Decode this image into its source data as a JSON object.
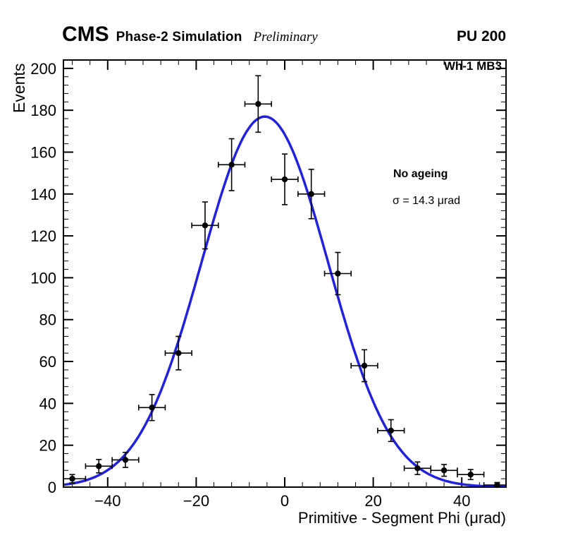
{
  "header": {
    "cms": "CMS",
    "simulation": "Phase-2 Simulation",
    "preliminary": "Preliminary",
    "pileup": "PU 200"
  },
  "annotations": {
    "chamber": "Wh-1 MB3",
    "legend_title": "No ageing",
    "legend_sigma": "σ = 14.3 μrad"
  },
  "chart_data": {
    "type": "scatter",
    "title": "",
    "xlabel": "Primitive - Segment Phi (μrad)",
    "ylabel": "Events",
    "xlim": [
      -50,
      50
    ],
    "ylim": [
      0,
      204
    ],
    "x_major_ticks": [
      -40,
      -20,
      0,
      20,
      40
    ],
    "x_minor_step": 4,
    "y_major_ticks": [
      0,
      20,
      40,
      60,
      80,
      100,
      120,
      140,
      160,
      180,
      200
    ],
    "y_minor_step": 4,
    "grid": false,
    "legend_position": "right-middle",
    "marker_color": "#000000",
    "points": [
      {
        "x": -48,
        "y": 4,
        "ey": 2.0,
        "ex": 3
      },
      {
        "x": -42,
        "y": 10,
        "ey": 3.2,
        "ex": 3
      },
      {
        "x": -36,
        "y": 13,
        "ey": 3.6,
        "ex": 3
      },
      {
        "x": -30,
        "y": 38,
        "ey": 6.2,
        "ex": 3
      },
      {
        "x": -24,
        "y": 64,
        "ey": 8.0,
        "ex": 3
      },
      {
        "x": -18,
        "y": 125,
        "ey": 11.2,
        "ex": 3
      },
      {
        "x": -12,
        "y": 154,
        "ey": 12.4,
        "ex": 3
      },
      {
        "x": -6,
        "y": 183,
        "ey": 13.5,
        "ex": 3
      },
      {
        "x": 0,
        "y": 147,
        "ey": 12.1,
        "ex": 3
      },
      {
        "x": 6,
        "y": 140,
        "ey": 11.8,
        "ex": 3
      },
      {
        "x": 12,
        "y": 102,
        "ey": 10.1,
        "ex": 3
      },
      {
        "x": 18,
        "y": 58,
        "ey": 7.6,
        "ex": 3
      },
      {
        "x": 24,
        "y": 27,
        "ey": 5.2,
        "ex": 3
      },
      {
        "x": 30,
        "y": 9,
        "ey": 3.0,
        "ex": 3
      },
      {
        "x": 36,
        "y": 8,
        "ey": 2.8,
        "ex": 3
      },
      {
        "x": 42,
        "y": 6,
        "ey": 2.4,
        "ex": 3
      },
      {
        "x": 48,
        "y": 1,
        "ey": 1.2,
        "ex": 3
      }
    ],
    "fit": {
      "type": "gaussian",
      "amplitude": 177,
      "mean": -4.5,
      "sigma": 14.3,
      "color": "#2222dd"
    }
  }
}
